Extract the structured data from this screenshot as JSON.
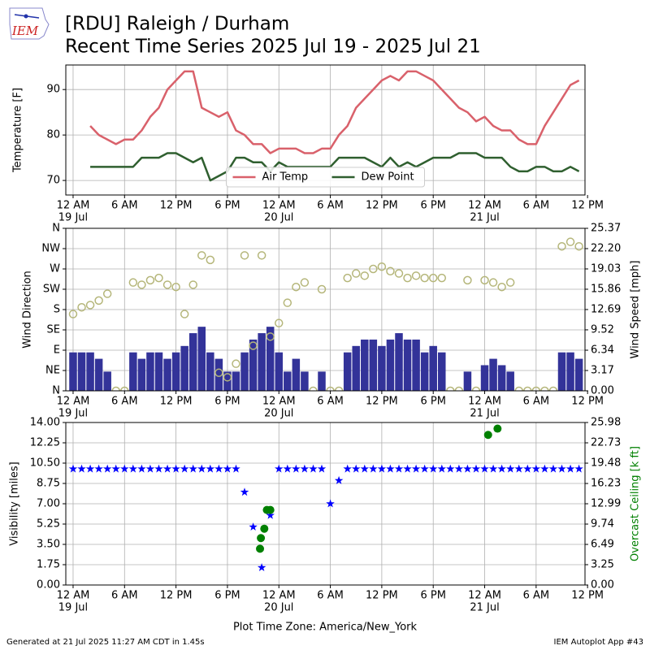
{
  "header": {
    "logo": "IEM",
    "title": "[RDU] Raleigh / Durham",
    "subtitle": "Recent Time Series 2025 Jul 19 - 2025 Jul 21"
  },
  "xlabel": "Plot Time Zone: America/New_York",
  "footer": {
    "left": "Generated at 21 Jul 2025 11:27 AM CDT in 1.45s",
    "right": "IEM Autoplot App #43"
  },
  "chart_data": [
    {
      "type": "line",
      "ylabel": "Temperature [F]",
      "grid": true,
      "legend": "lower center",
      "xlim": [
        -0.85,
        59.7
      ],
      "xticks": [
        {
          "value": 0,
          "label": "12 AM"
        },
        {
          "value": 6,
          "label": "6 AM"
        },
        {
          "value": 12,
          "label": "12 PM"
        },
        {
          "value": 18,
          "label": "6 PM"
        },
        {
          "value": 24,
          "label": "12 AM"
        },
        {
          "value": 30,
          "label": "6 AM"
        },
        {
          "value": 36,
          "label": "12 PM"
        },
        {
          "value": 42,
          "label": "6 PM"
        },
        {
          "value": 48,
          "label": "12 AM"
        },
        {
          "value": 54,
          "label": "6 AM"
        },
        {
          "value": 60,
          "label": "12 PM"
        }
      ],
      "xdates": [
        {
          "value": 0,
          "label": "19 Jul"
        },
        {
          "value": 24,
          "label": "20 Jul"
        },
        {
          "value": 48,
          "label": "21 Jul"
        }
      ],
      "ylim": [
        66.8,
        95.4
      ],
      "yticks": [
        70,
        80,
        90
      ],
      "x": [
        2,
        3,
        4,
        5,
        6,
        7,
        8,
        9,
        10,
        11,
        12,
        13,
        14,
        15,
        16,
        17,
        18,
        19,
        20,
        21,
        22,
        23,
        24,
        25,
        26,
        27,
        28,
        29,
        30,
        31,
        32,
        33,
        34,
        35,
        36,
        37,
        38,
        39,
        40,
        41,
        42,
        43,
        44,
        45,
        46,
        47,
        48,
        49,
        50,
        51,
        52,
        53,
        54,
        55,
        56,
        57,
        58,
        59
      ],
      "series": [
        {
          "name": "Air Temp",
          "type": "line",
          "color": "#d9616b",
          "values": [
            82,
            80,
            79,
            78,
            79,
            79,
            81,
            84,
            86,
            90,
            92,
            94,
            94,
            86,
            85,
            84,
            85,
            81,
            80,
            78,
            78,
            76,
            77,
            77,
            77,
            76,
            76,
            77,
            77,
            80,
            82,
            86,
            88,
            90,
            92,
            93,
            92,
            94,
            94,
            93,
            92,
            90,
            88,
            86,
            85,
            83,
            84,
            82,
            81,
            81,
            79,
            78,
            78,
            82,
            85,
            88,
            91,
            92
          ]
        },
        {
          "name": "Dew Point",
          "type": "line",
          "color": "#2f5f2f",
          "values": [
            73,
            73,
            73,
            73,
            73,
            73,
            75,
            75,
            75,
            76,
            76,
            75,
            74,
            75,
            70,
            71,
            72,
            75,
            75,
            74,
            74,
            72,
            74,
            73,
            73,
            73,
            73,
            73,
            73,
            75,
            75,
            75,
            75,
            74,
            73,
            75,
            73,
            74,
            73,
            74,
            75,
            75,
            75,
            76,
            76,
            76,
            75,
            75,
            75,
            73,
            72,
            72,
            73,
            73,
            72,
            72,
            73,
            72
          ]
        }
      ]
    },
    {
      "type": "scatter",
      "ylabel": "Wind Direction",
      "y2label": "Wind Speed [mph]",
      "grid": true,
      "xlim": [
        -0.85,
        59.7
      ],
      "xticks": [
        {
          "value": 0,
          "label": "12 AM"
        },
        {
          "value": 6,
          "label": "6 AM"
        },
        {
          "value": 12,
          "label": "12 PM"
        },
        {
          "value": 18,
          "label": "6 PM"
        },
        {
          "value": 24,
          "label": "12 AM"
        },
        {
          "value": 30,
          "label": "6 AM"
        },
        {
          "value": 36,
          "label": "12 PM"
        },
        {
          "value": 42,
          "label": "6 PM"
        },
        {
          "value": 48,
          "label": "12 AM"
        },
        {
          "value": 54,
          "label": "6 AM"
        },
        {
          "value": 60,
          "label": "12 PM"
        }
      ],
      "xdates": [
        {
          "value": 0,
          "label": "19 Jul"
        },
        {
          "value": 24,
          "label": "20 Jul"
        },
        {
          "value": 48,
          "label": "21 Jul"
        }
      ],
      "ylim": [
        0,
        360
      ],
      "yticks": [
        {
          "value": 0,
          "label": "N"
        },
        {
          "value": 45,
          "label": "NE"
        },
        {
          "value": 90,
          "label": "E"
        },
        {
          "value": 135,
          "label": "SE"
        },
        {
          "value": 180,
          "label": "S"
        },
        {
          "value": 225,
          "label": "SW"
        },
        {
          "value": 270,
          "label": "W"
        },
        {
          "value": 315,
          "label": "NW"
        },
        {
          "value": 360,
          "label": "N"
        }
      ],
      "y2lim": [
        0,
        25.37
      ],
      "y2ticks": [
        {
          "value": 0,
          "label": "0.00"
        },
        3.17,
        6.34,
        9.52,
        12.69,
        15.86,
        19.03,
        {
          "value": 22.2,
          "label": "22.20"
        },
        25.37
      ],
      "x": [
        0,
        1,
        2,
        3,
        4,
        5,
        6,
        7,
        8,
        9,
        10,
        11,
        12,
        13,
        14,
        15,
        16,
        17,
        18,
        19,
        20,
        21,
        22,
        23,
        24,
        25,
        26,
        27,
        28,
        29,
        30,
        31,
        32,
        33,
        34,
        35,
        36,
        37,
        38,
        39,
        40,
        41,
        42,
        43,
        44,
        45,
        46,
        47,
        48,
        49,
        50,
        51,
        52,
        53,
        54,
        55,
        56,
        57,
        58,
        59
      ],
      "series": [
        {
          "type": "bar",
          "axis": "y2",
          "color": "#333399",
          "values": [
            6,
            6,
            6,
            5,
            3,
            0,
            0,
            6,
            5,
            6,
            6,
            5,
            6,
            7,
            9,
            10,
            6,
            5,
            3,
            3,
            6,
            8,
            9,
            10,
            6,
            3,
            5,
            3,
            0,
            3,
            0,
            0,
            6,
            7,
            8,
            8,
            7,
            8,
            9,
            8,
            8,
            6,
            7,
            6,
            0,
            0,
            3,
            0,
            4,
            5,
            4,
            3,
            0,
            0,
            0,
            0,
            0,
            6,
            6,
            5
          ]
        },
        {
          "type": "scatter",
          "marker": "circle-open",
          "color": "#b5b67a",
          "values": [
            170,
            185,
            190,
            200,
            215,
            0,
            0,
            240,
            235,
            245,
            250,
            235,
            230,
            170,
            235,
            300,
            290,
            40,
            30,
            60,
            300,
            100,
            300,
            120,
            150,
            195,
            230,
            240,
            0,
            225,
            0,
            0,
            250,
            260,
            255,
            270,
            275,
            265,
            260,
            250,
            255,
            250,
            250,
            250,
            0,
            0,
            245,
            0,
            245,
            240,
            230,
            240,
            0,
            0,
            0,
            0,
            0,
            320,
            330,
            320
          ]
        }
      ]
    },
    {
      "type": "scatter",
      "ylabel": "Visibility [miles]",
      "y2label": "Overcast Ceiling [k ft]",
      "y2label_color": "#008000",
      "grid": true,
      "xlim": [
        -0.85,
        59.7
      ],
      "xticks": [
        {
          "value": 0,
          "label": "12 AM"
        },
        {
          "value": 6,
          "label": "6 AM"
        },
        {
          "value": 12,
          "label": "12 PM"
        },
        {
          "value": 18,
          "label": "6 PM"
        },
        {
          "value": 24,
          "label": "12 AM"
        },
        {
          "value": 30,
          "label": "6 AM"
        },
        {
          "value": 36,
          "label": "12 PM"
        },
        {
          "value": 42,
          "label": "6 PM"
        },
        {
          "value": 48,
          "label": "12 AM"
        },
        {
          "value": 54,
          "label": "6 AM"
        },
        {
          "value": 60,
          "label": "12 PM"
        }
      ],
      "xdates": [
        {
          "value": 0,
          "label": "19 Jul"
        },
        {
          "value": 24,
          "label": "20 Jul"
        },
        {
          "value": 48,
          "label": "21 Jul"
        }
      ],
      "ylim": [
        0,
        14
      ],
      "yticks": [
        {
          "value": 0,
          "label": "0.00"
        },
        1.75,
        {
          "value": 3.5,
          "label": "3.50"
        },
        5.25,
        {
          "value": 7,
          "label": "7.00"
        },
        8.75,
        {
          "value": 10.5,
          "label": "10.50"
        },
        12.25,
        {
          "value": 14,
          "label": "14.00"
        }
      ],
      "y2lim": [
        0,
        25.98
      ],
      "y2ticks": [
        {
          "value": 0,
          "label": "0.00"
        },
        3.25,
        6.49,
        9.74,
        12.99,
        16.23,
        19.48,
        22.73,
        25.98
      ],
      "series": [
        {
          "type": "scatter",
          "marker": "star",
          "color": "#0000ff",
          "x": [
            0,
            1,
            2,
            3,
            4,
            5,
            6,
            7,
            8,
            9,
            10,
            11,
            12,
            13,
            14,
            15,
            16,
            17,
            18,
            19,
            20,
            21,
            22,
            23,
            24,
            25,
            26,
            27,
            28,
            29,
            30,
            31,
            32,
            33,
            34,
            35,
            36,
            37,
            38,
            39,
            40,
            41,
            42,
            43,
            44,
            45,
            46,
            47,
            48,
            49,
            50,
            51,
            52,
            53,
            54,
            55,
            56,
            57,
            58,
            59
          ],
          "values": [
            10,
            10,
            10,
            10,
            10,
            10,
            10,
            10,
            10,
            10,
            10,
            10,
            10,
            10,
            10,
            10,
            10,
            10,
            10,
            10,
            8,
            5,
            1.5,
            6,
            10,
            10,
            10,
            10,
            10,
            10,
            7,
            9,
            10,
            10,
            10,
            10,
            10,
            10,
            10,
            10,
            10,
            10,
            10,
            10,
            10,
            10,
            10,
            10,
            10,
            10,
            10,
            10,
            10,
            10,
            10,
            10,
            10,
            10,
            10,
            10
          ]
        },
        {
          "type": "scatter",
          "marker": "circle",
          "axis": "y2",
          "color": "#008000",
          "x": [
            21.8,
            21.9,
            22.3,
            22.6,
            23.0,
            48.4,
            49.5
          ],
          "values": [
            5.8,
            7.5,
            9.0,
            12.0,
            12.0,
            24.0,
            25.0
          ]
        }
      ]
    }
  ]
}
